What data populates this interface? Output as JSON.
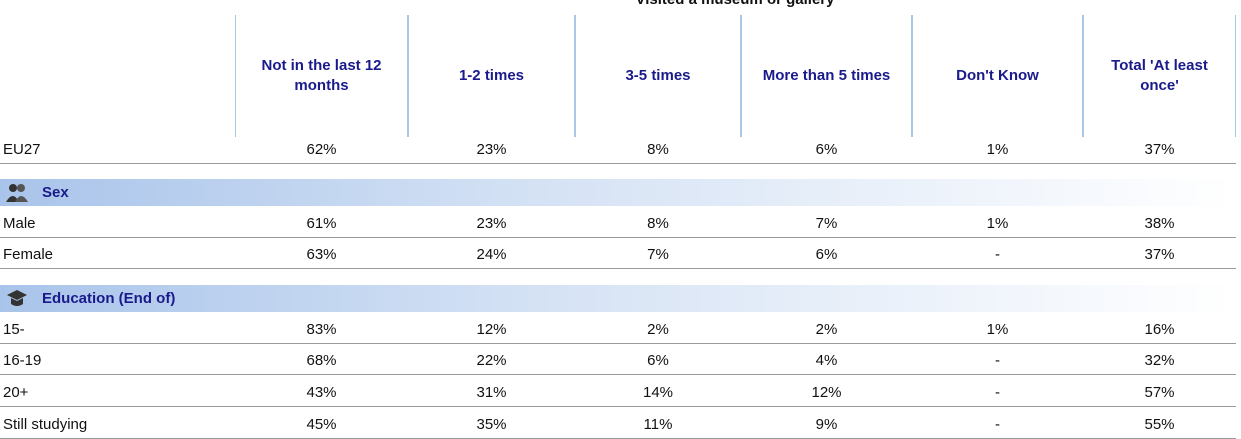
{
  "title": "Visited a museum or gallery",
  "table": {
    "columns": [
      "Not in the last 12 months",
      "1-2 times",
      "3-5 times",
      "More than 5 times",
      "Don't Know",
      "Total 'At least once'"
    ],
    "rows": [
      {
        "label": "EU27",
        "cells": [
          "62%",
          "23%",
          "8%",
          "6%",
          "1%",
          "37%"
        ]
      },
      {
        "section": "Sex"
      },
      {
        "label": "Male",
        "cells": [
          "61%",
          "23%",
          "8%",
          "7%",
          "1%",
          "38%"
        ]
      },
      {
        "label": "Female",
        "cells": [
          "63%",
          "24%",
          "7%",
          "6%",
          "-",
          "37%"
        ]
      },
      {
        "section": "Education (End of)"
      },
      {
        "label": "15-",
        "cells": [
          "83%",
          "12%",
          "2%",
          "2%",
          "1%",
          "16%"
        ]
      },
      {
        "label": "16-19",
        "cells": [
          "68%",
          "22%",
          "6%",
          "4%",
          "-",
          "32%"
        ]
      },
      {
        "label": "20+",
        "cells": [
          "43%",
          "31%",
          "14%",
          "12%",
          "-",
          "57%"
        ]
      },
      {
        "label": "Still studying",
        "cells": [
          "45%",
          "35%",
          "11%",
          "9%",
          "-",
          "55%"
        ]
      }
    ]
  }
}
